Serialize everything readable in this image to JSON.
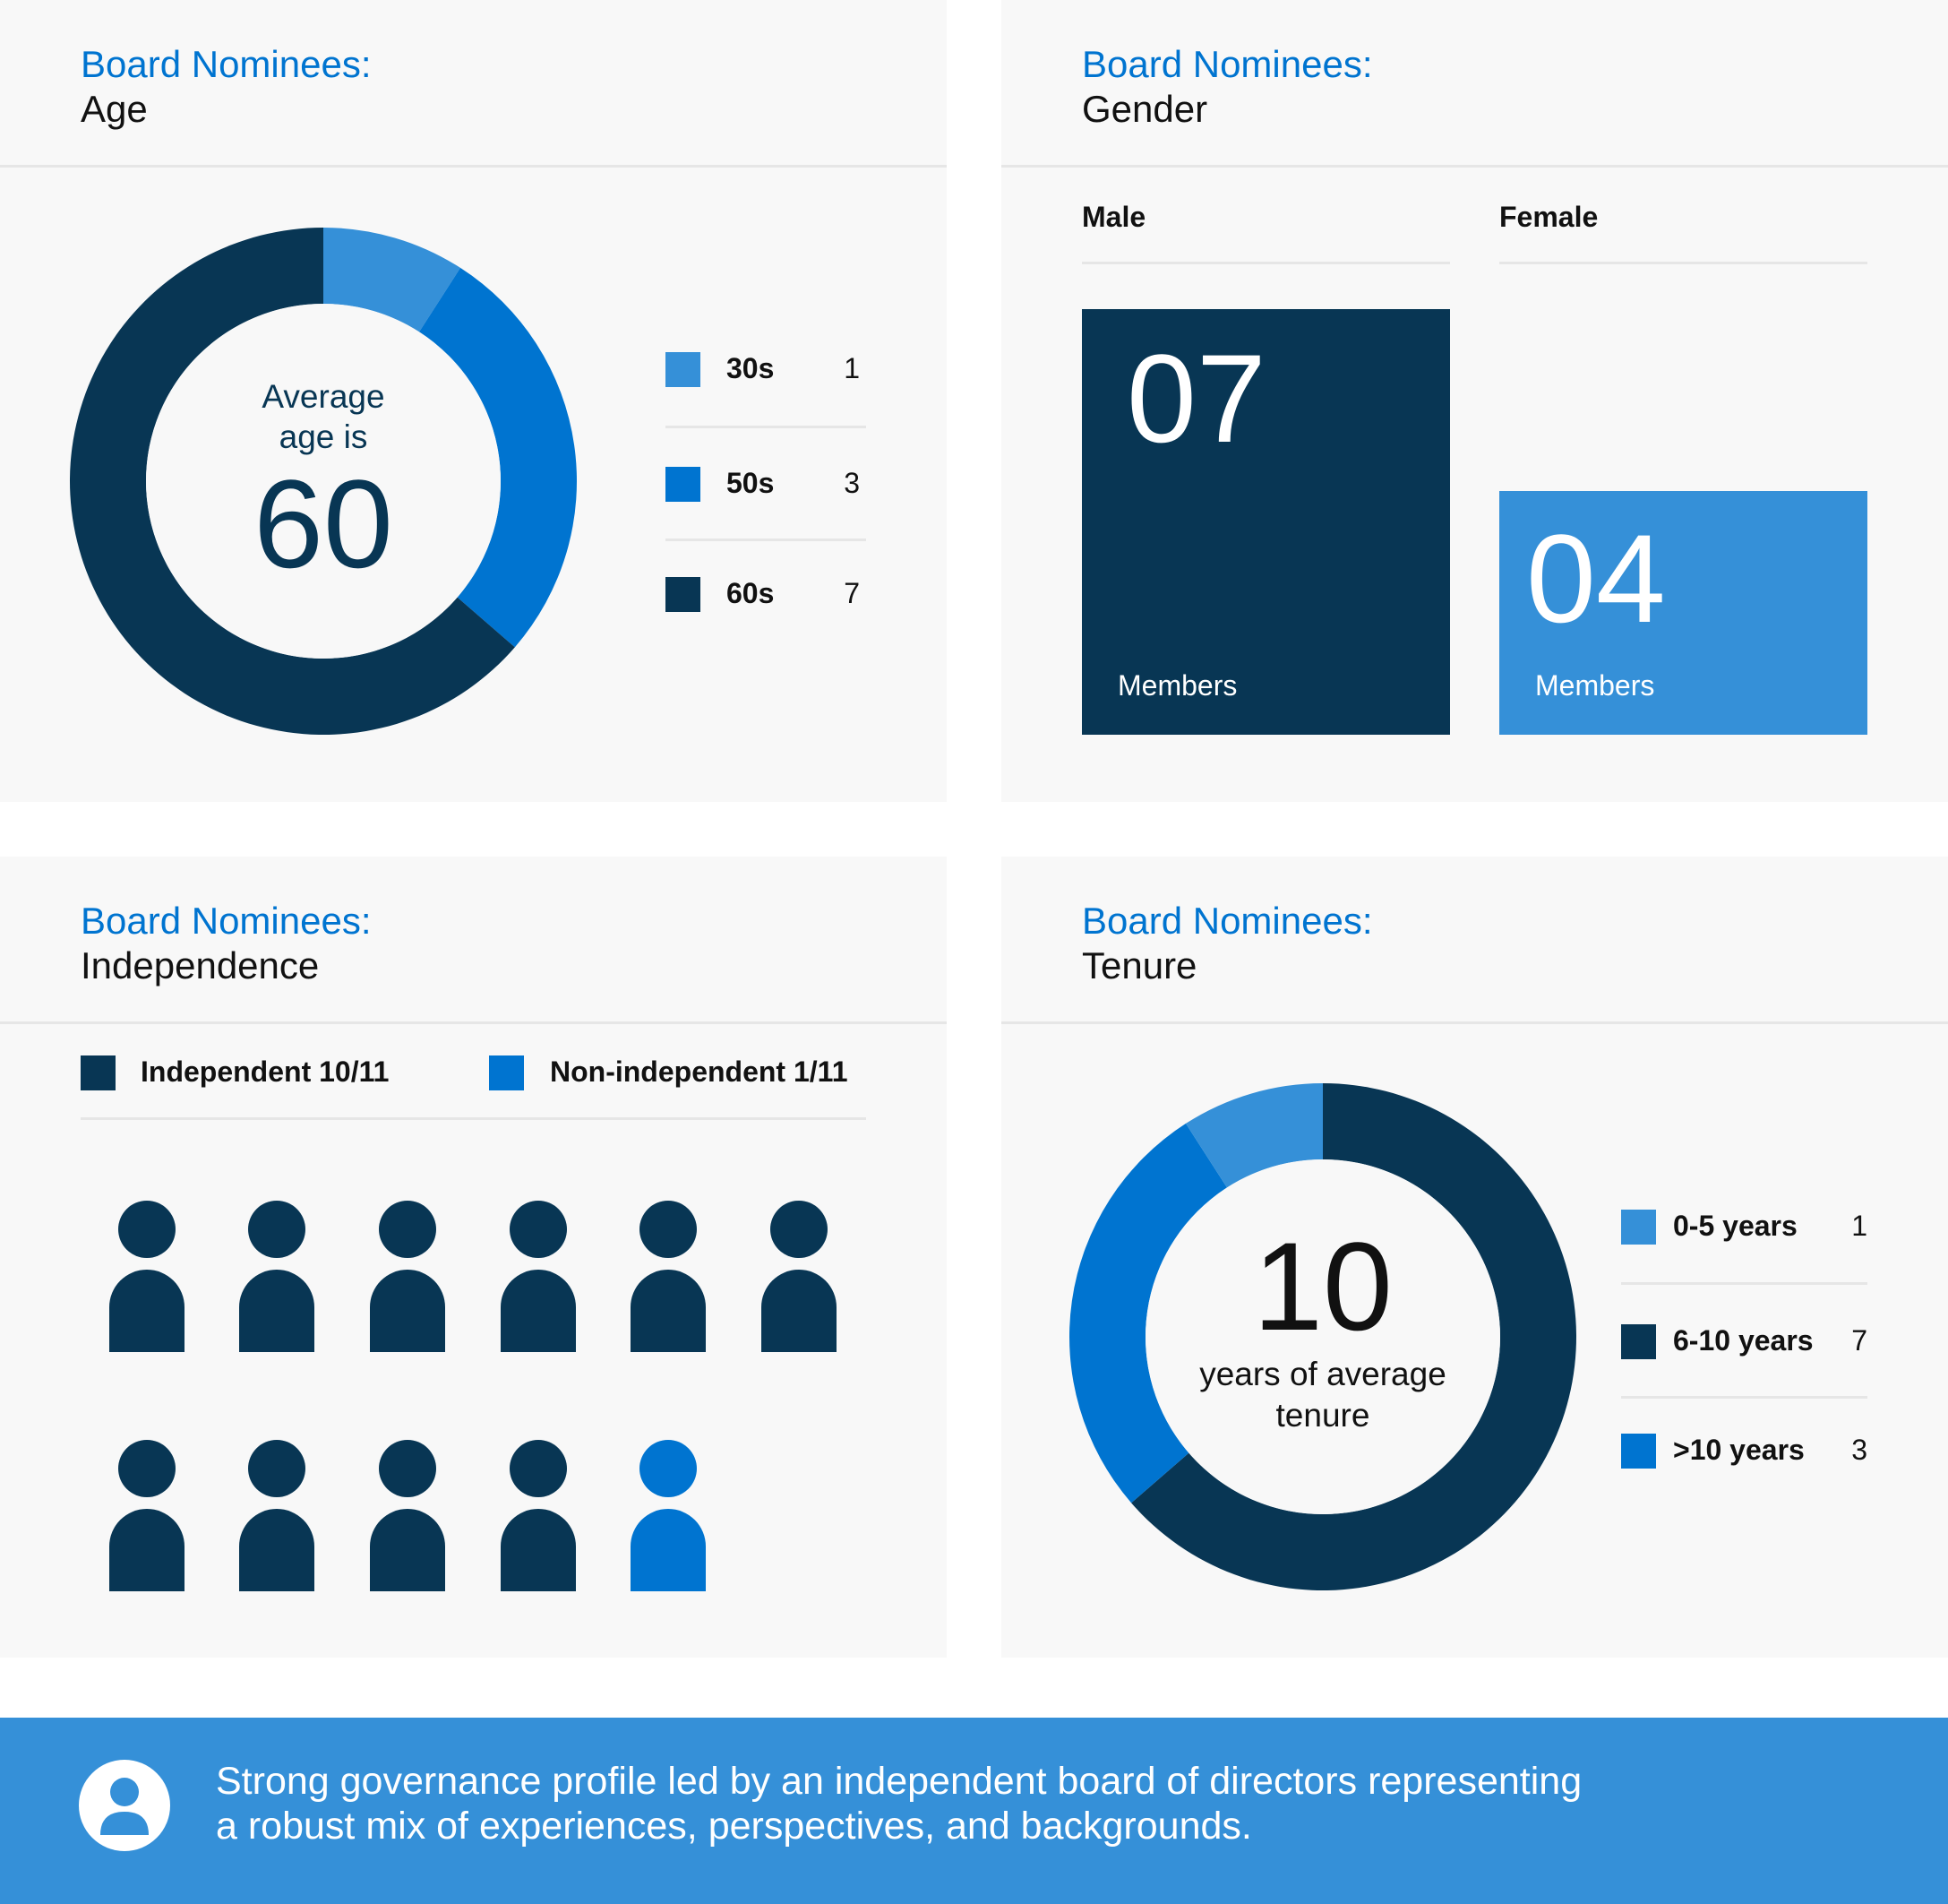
{
  "colors": {
    "dark": "#083654",
    "blue": "#0074d0",
    "light": "#3590d8",
    "panel": "#f8f8f8",
    "title": "#0074d0"
  },
  "age": {
    "title": "Board Nominees:",
    "subtitle": "Age",
    "center_line1": "Average",
    "center_line2": "age is",
    "center_value": "60",
    "items": [
      {
        "label": "30s",
        "value": 1,
        "color": "light"
      },
      {
        "label": "50s",
        "value": 3,
        "color": "blue"
      },
      {
        "label": "60s",
        "value": 7,
        "color": "dark"
      }
    ]
  },
  "gender": {
    "title": "Board Nominees:",
    "subtitle": "Gender",
    "male": {
      "label": "Male",
      "value": "07",
      "unit": "Members"
    },
    "female": {
      "label": "Female",
      "value": "04",
      "unit": "Members"
    }
  },
  "independence": {
    "title": "Board Nominees:",
    "subtitle": "Independence",
    "legend": [
      {
        "label": "Independent 10/11",
        "color": "dark"
      },
      {
        "label": "Non-independent 1/11",
        "color": "blue"
      }
    ],
    "independent": 10,
    "non_independent": 1,
    "people_icon": "person-icon"
  },
  "tenure": {
    "title": "Board Nominees:",
    "subtitle": "Tenure",
    "center_value": "10",
    "center_line1": "years of average",
    "center_line2": "tenure",
    "items": [
      {
        "label": "0-5 years",
        "value": 1,
        "color": "light"
      },
      {
        "label": "6-10 years",
        "value": 7,
        "color": "dark"
      },
      {
        "label": ">10 years",
        "value": 3,
        "color": "blue"
      }
    ],
    "ring_order": [
      "6-10 years",
      ">10 years",
      "0-5 years"
    ]
  },
  "banner": {
    "icon": "user-circle-icon",
    "line1": "Strong governance profile led by an independent board of directors representing",
    "line2": "a robust mix of experiences, perspectives, and backgrounds."
  }
}
